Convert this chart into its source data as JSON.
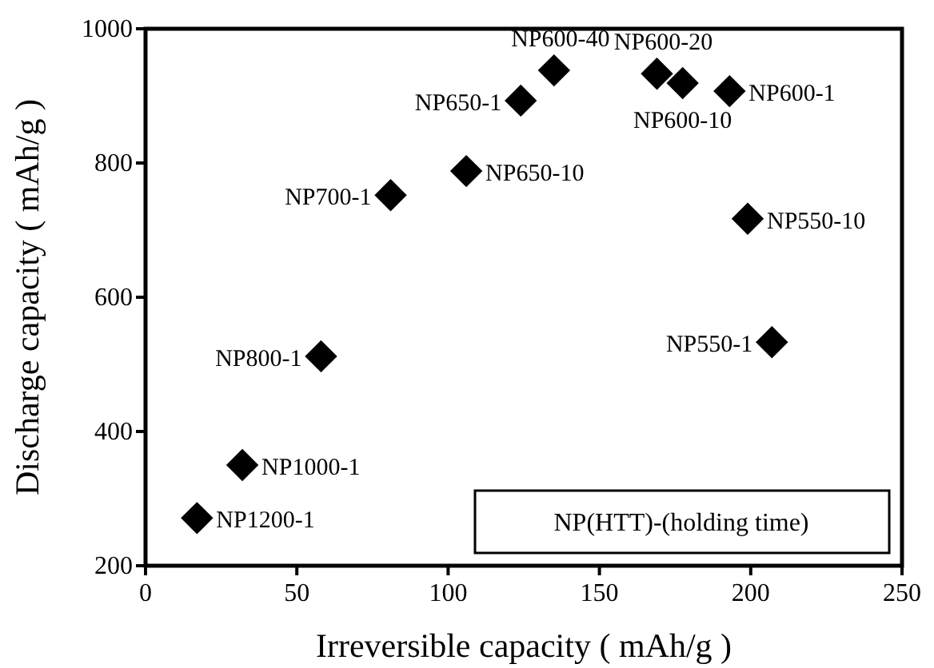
{
  "chart_data": {
    "type": "scatter",
    "xlabel": "Irreversible capacity ( mAh/g )",
    "ylabel": "Discharge capacity ( mAh/g )",
    "xlim": [
      0,
      250
    ],
    "xticks": [
      0,
      50,
      100,
      150,
      200,
      250
    ],
    "ylim": [
      200,
      1000
    ],
    "yticks": [
      200,
      400,
      600,
      800,
      1000
    ],
    "grid": false,
    "marker": "diamond",
    "series": [
      {
        "color": "#000000",
        "x": [
          135,
          124,
          169,
          177.5,
          193,
          106,
          81,
          199,
          58,
          207,
          32,
          17
        ],
        "values": [
          938,
          893,
          933,
          919,
          907,
          788,
          752,
          717,
          512,
          533,
          350,
          271
        ]
      }
    ],
    "annotations": [
      {
        "text": "NP600-40",
        "x": 135,
        "y": 938
      },
      {
        "text": "NP650-1",
        "x": 124,
        "y": 893
      },
      {
        "text": "NP600-20",
        "x": 169,
        "y": 933
      },
      {
        "text": "NP600-10",
        "x": 177.5,
        "y": 919
      },
      {
        "text": "NP600-1",
        "x": 193,
        "y": 907
      },
      {
        "text": "NP650-10",
        "x": 106,
        "y": 788
      },
      {
        "text": "NP700-1",
        "x": 81,
        "y": 752
      },
      {
        "text": "NP550-10",
        "x": 199,
        "y": 717
      },
      {
        "text": "NP800-1",
        "x": 58,
        "y": 512
      },
      {
        "text": "NP550-1",
        "x": 207,
        "y": 533
      },
      {
        "text": "NP1000-1",
        "x": 32,
        "y": 350
      },
      {
        "text": "NP1200-1",
        "x": 17,
        "y": 271
      },
      "NP(HTT)-(holding time)"
    ]
  }
}
